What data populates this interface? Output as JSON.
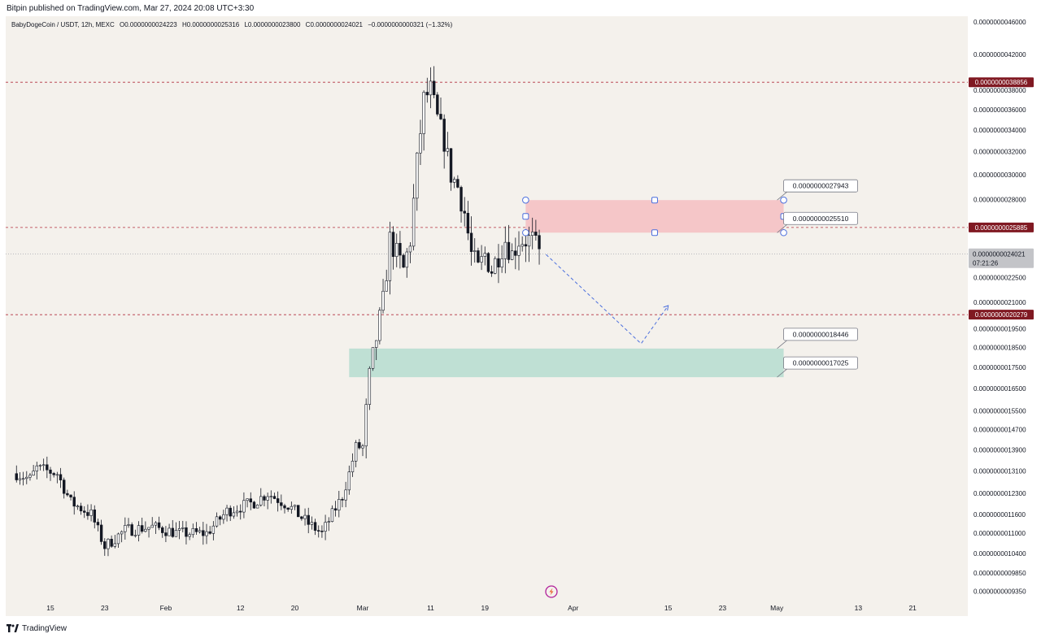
{
  "header": {
    "published_text": "Bitpin published on TradingView.com, Mar 27, 2024 20:08 UTC+3:30"
  },
  "legend": {
    "symbol": "BabyDogeCoin / USDT, 12h, MEXC",
    "open": "O0.0000000024223",
    "high": "H0.0000000025316",
    "low": "L0.0000000023800",
    "close": "C0.0000000024021",
    "change": "−0.0000000000321 (−1.32%)"
  },
  "footer": {
    "brand": "TradingView"
  },
  "colors": {
    "background": "#f4f1ec",
    "up": "#ffffff",
    "down": "#131722",
    "resistance_zone": "#f5c6c8",
    "support_zone": "#bfe0d4",
    "level_line": "#b2303f",
    "badge": "#801922",
    "current_badge": "#c3c4c8",
    "projection": "#4b6fdd"
  },
  "chart_data": {
    "type": "candlestick",
    "symbol": "BabyDogeCoin / USDT",
    "interval": "12h",
    "exchange": "MEXC",
    "price_axis": {
      "scale": "log",
      "range": [
        9.3e-10,
        4.7e-09
      ],
      "ticks": [
        "0.0000000046000",
        "0.0000000042000",
        "0.0000000038000",
        "0.0000000036000",
        "0.0000000034000",
        "0.0000000032000",
        "0.0000000030000",
        "0.0000000028000",
        "0.0000000024000",
        "0.0000000022500",
        "0.0000000021000",
        "0.0000000019500",
        "0.0000000018500",
        "0.0000000017500",
        "0.0000000016500",
        "0.0000000015500",
        "0.0000000014700",
        "0.0000000013900",
        "0.0000000013100",
        "0.0000000012300",
        "0.0000000011600",
        "0.0000000011000",
        "0.0000000010400",
        "0.0000000009850",
        "0.0000000009350"
      ]
    },
    "time_axis": {
      "range": [
        "2024-01-10",
        "2024-05-24"
      ],
      "ticks": [
        {
          "label": "15",
          "date": "2024-01-15"
        },
        {
          "label": "23",
          "date": "2024-01-23"
        },
        {
          "label": "Feb",
          "date": "2024-02-01"
        },
        {
          "label": "12",
          "date": "2024-02-12"
        },
        {
          "label": "20",
          "date": "2024-02-20"
        },
        {
          "label": "Mar",
          "date": "2024-03-01"
        },
        {
          "label": "11",
          "date": "2024-03-11"
        },
        {
          "label": "19",
          "date": "2024-03-19"
        },
        {
          "label": "Apr",
          "date": "2024-04-01"
        },
        {
          "label": "15",
          "date": "2024-04-15"
        },
        {
          "label": "23",
          "date": "2024-04-23"
        },
        {
          "label": "May",
          "date": "2024-05-01"
        },
        {
          "label": "13",
          "date": "2024-05-13"
        },
        {
          "label": "21",
          "date": "2024-05-21"
        }
      ]
    },
    "anchors": [
      {
        "date": "2024-01-10",
        "price": 1.3e-09
      },
      {
        "date": "2024-01-12",
        "price": 1.28e-09
      },
      {
        "date": "2024-01-13",
        "price": 1.32e-09
      },
      {
        "date": "2024-01-16",
        "price": 1.3e-09
      },
      {
        "date": "2024-01-18",
        "price": 1.2e-09
      },
      {
        "date": "2024-01-21",
        "price": 1.16e-09
      },
      {
        "date": "2024-01-23",
        "price": 1.06e-09
      },
      {
        "date": "2024-01-26",
        "price": 1.11e-09
      },
      {
        "date": "2024-01-30",
        "price": 1.12e-09
      },
      {
        "date": "2024-02-03",
        "price": 1.1e-09
      },
      {
        "date": "2024-02-07",
        "price": 1.1e-09
      },
      {
        "date": "2024-02-10",
        "price": 1.17e-09
      },
      {
        "date": "2024-02-14",
        "price": 1.2e-09
      },
      {
        "date": "2024-02-16",
        "price": 1.23e-09
      },
      {
        "date": "2024-02-19",
        "price": 1.19e-09
      },
      {
        "date": "2024-02-22",
        "price": 1.13e-09
      },
      {
        "date": "2024-02-24",
        "price": 1.1e-09
      },
      {
        "date": "2024-02-26",
        "price": 1.18e-09
      },
      {
        "date": "2024-02-27",
        "price": 1.22e-09
      },
      {
        "date": "2024-02-28",
        "price": 1.3e-09
      },
      {
        "date": "2024-02-29",
        "price": 1.4e-09
      },
      {
        "date": "2024-03-01",
        "price": 1.4e-09
      },
      {
        "date": "2024-03-02",
        "price": 1.7e-09
      },
      {
        "date": "2024-03-03",
        "price": 1.9e-09
      },
      {
        "date": "2024-03-04",
        "price": 2.1e-09
      },
      {
        "date": "2024-03-05",
        "price": 2.5e-09
      },
      {
        "date": "2024-03-06",
        "price": 2.4e-09
      },
      {
        "date": "2024-03-07",
        "price": 2.3e-09
      },
      {
        "date": "2024-03-08",
        "price": 2.5e-09
      },
      {
        "date": "2024-03-09",
        "price": 3.1e-09
      },
      {
        "date": "2024-03-10",
        "price": 3.7e-09
      },
      {
        "date": "2024-03-11",
        "price": 3.8e-09
      },
      {
        "date": "2024-03-12",
        "price": 3.5e-09
      },
      {
        "date": "2024-03-13",
        "price": 3.3e-09
      },
      {
        "date": "2024-03-14",
        "price": 3e-09
      },
      {
        "date": "2024-03-15",
        "price": 2.9e-09
      },
      {
        "date": "2024-03-16",
        "price": 2.7e-09
      },
      {
        "date": "2024-03-17",
        "price": 2.4e-09
      },
      {
        "date": "2024-03-18",
        "price": 2.3e-09
      },
      {
        "date": "2024-03-19",
        "price": 2.4e-09
      },
      {
        "date": "2024-03-20",
        "price": 2.3e-09
      },
      {
        "date": "2024-03-21",
        "price": 2.4e-09
      },
      {
        "date": "2024-03-22",
        "price": 2.5e-09
      },
      {
        "date": "2024-03-23",
        "price": 2.4e-09
      },
      {
        "date": "2024-03-24",
        "price": 2.5e-09
      },
      {
        "date": "2024-03-26",
        "price": 2.5e-09
      },
      {
        "date": "2024-03-27",
        "price": 2.4021e-09
      }
    ],
    "levels": [
      {
        "name": "resistance-high",
        "value": 3.8856e-09,
        "label": "0.0000000038856"
      },
      {
        "name": "resistance-mid",
        "value": 2.5885e-09,
        "label": "0.0000000025885"
      },
      {
        "name": "support-level",
        "value": 2.0279e-09,
        "label": "0.0000000020279"
      }
    ],
    "current_price": {
      "value": 2.4021e-09,
      "label": "0.0000000024021",
      "countdown": "07:21:26"
    },
    "zones": [
      {
        "name": "resistance-zone",
        "top": 2.7943e-09,
        "bottom": 2.551e-09,
        "from": "2024-03-25",
        "to": "2024-05-02",
        "top_label": "0.0000000027943",
        "bottom_label": "0.0000000025510"
      },
      {
        "name": "support-zone",
        "top": 1.8446e-09,
        "bottom": 1.7025e-09,
        "from": "2024-02-28",
        "to": "2024-05-02",
        "top_label": "0.0000000018446",
        "bottom_label": "0.0000000017025"
      }
    ],
    "projection": [
      {
        "date": "2024-03-28",
        "price": 2.4e-09
      },
      {
        "date": "2024-04-11",
        "price": 1.87e-09
      },
      {
        "date": "2024-04-15",
        "price": 2.08e-09
      }
    ]
  }
}
